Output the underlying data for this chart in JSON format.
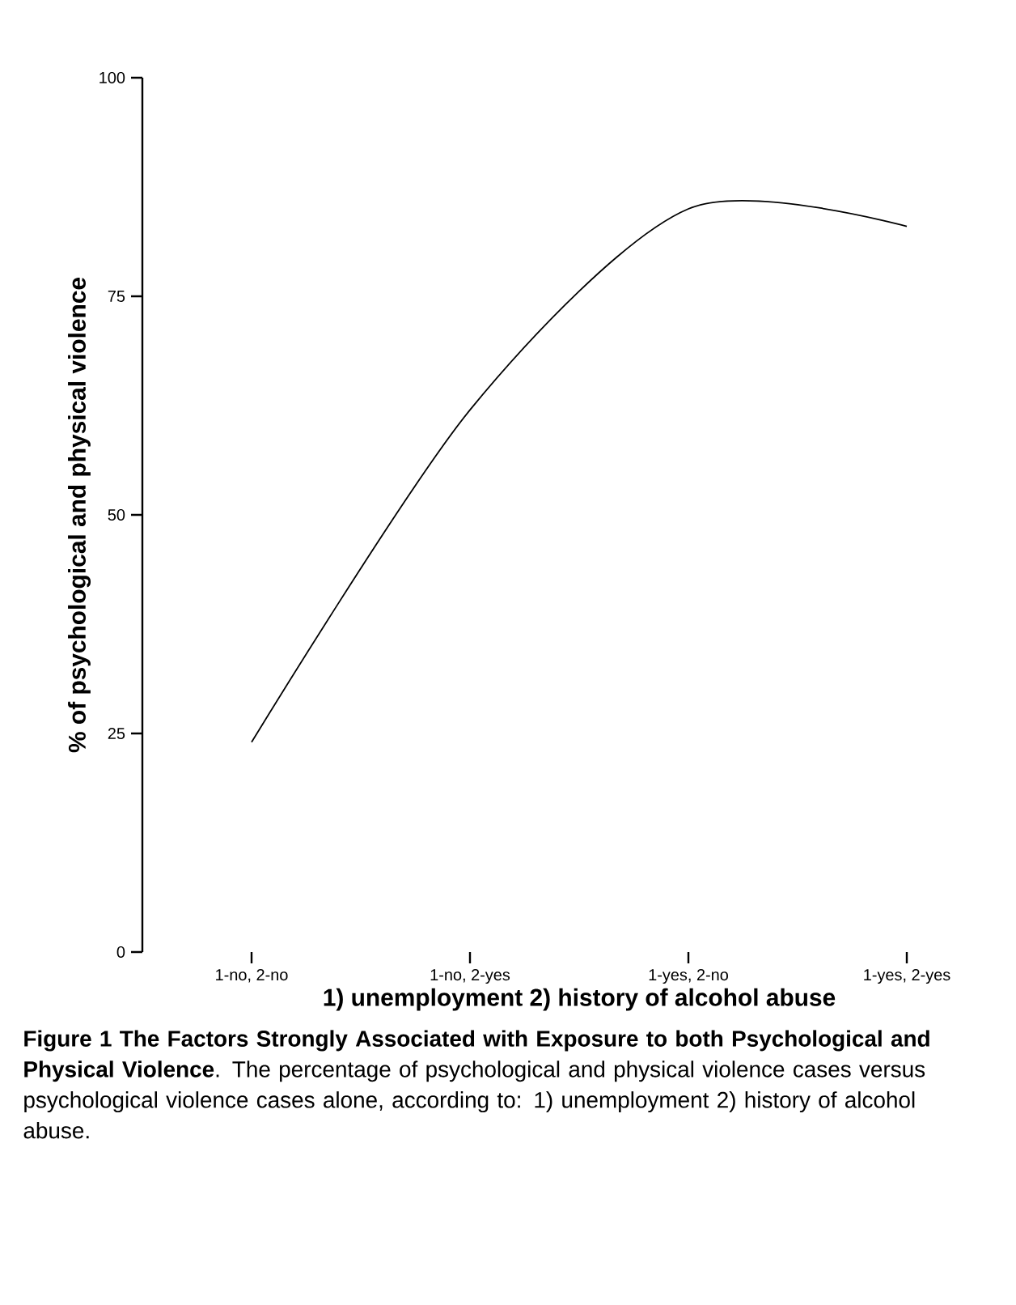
{
  "chart_data": {
    "type": "line",
    "xlabel": "1) unemployment  2) history of alcohol abuse",
    "ylabel": "% of psychological and physical violence",
    "categories": [
      "1-no, 2-no",
      "1-no, 2-yes",
      "1-yes, 2-no",
      "1-yes, 2-yes"
    ],
    "values": [
      24,
      62,
      85,
      83
    ],
    "color": "#000000",
    "marker": "none",
    "line_style": "solid",
    "ylim": [
      0,
      100
    ],
    "yticks": [
      0,
      25,
      50,
      75,
      100
    ],
    "annotations": [
      "**Figure 1 The Factors Strongly Associated with Exposure to both Psychological and Physical Violence**. The percentage of psychological and physical violence cases versus psychological violence cases alone, according to: 1) unemployment 2) history of alcohol abuse."
    ]
  }
}
